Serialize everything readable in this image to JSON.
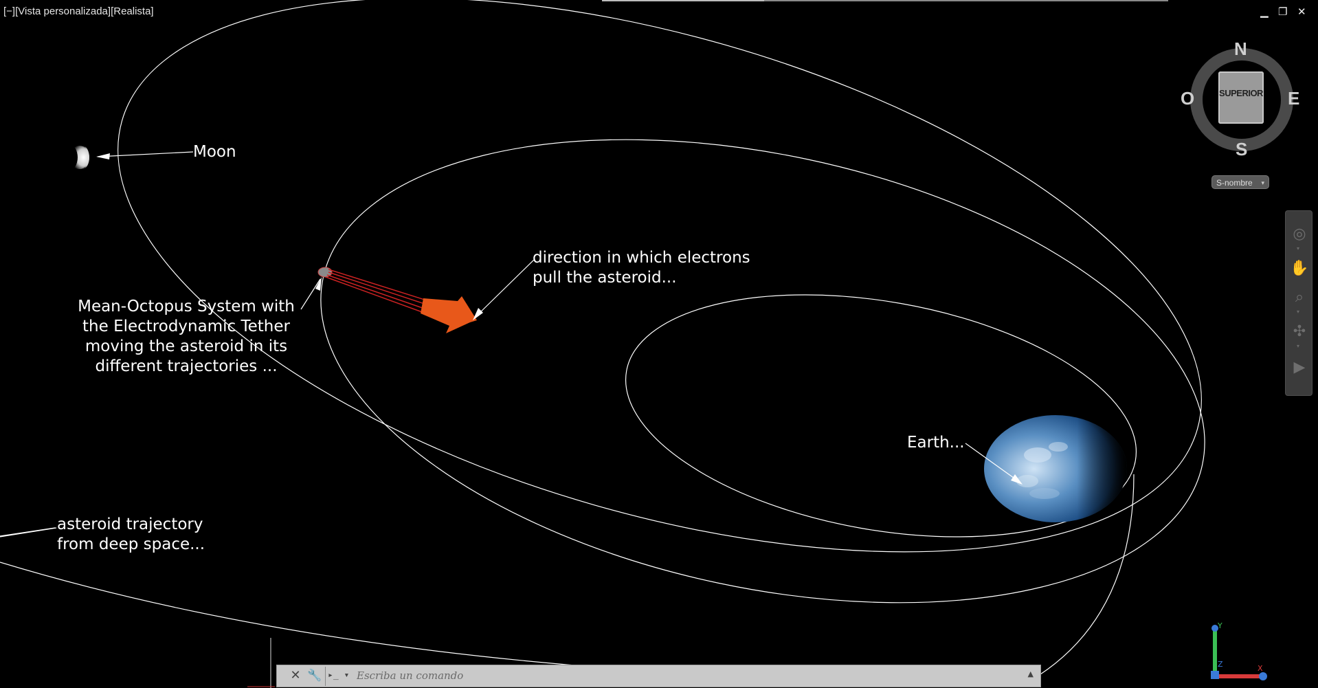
{
  "viewport": {
    "label": "[−][Vista personalizada][Realista]"
  },
  "window_controls": {
    "minimize": "▁",
    "restore": "❐",
    "close": "✕"
  },
  "annotations": {
    "moon": "Moon",
    "tether_lines": [
      "Mean-Octopus System with",
      "the Electrodynamic Tether",
      "moving the asteroid in its",
      "different trajectories ..."
    ],
    "direction_lines": [
      "direction in which electrons",
      "pull the asteroid..."
    ],
    "earth": "Earth...",
    "asteroid_lines": [
      "asteroid trajectory",
      "from deep space..."
    ]
  },
  "viewcube": {
    "top_face": "SUPERIOR",
    "north": "N",
    "south": "S",
    "east": "E",
    "west": "O"
  },
  "wcs_menu": {
    "label": "S-nombre"
  },
  "navbar": {
    "icons": [
      "steering-wheel-icon",
      "pan-hand-icon",
      "zoom-icon",
      "orbit-icon",
      "showmotion-icon"
    ]
  },
  "command_line": {
    "placeholder": "Escriba un comando",
    "close_glyph": "✕",
    "wrench_glyph": "🔧",
    "prompt_glyph": "▸_ ▾",
    "history_glyph": "▲"
  },
  "colors": {
    "background": "#000000",
    "orbit_lines": "#ffffff",
    "arrow": "#e8581a",
    "tether": "#cc2222",
    "ucs_y": "#3bbf55",
    "ucs_x": "#d83a3a",
    "ucs_z": "#3a7ad8"
  }
}
